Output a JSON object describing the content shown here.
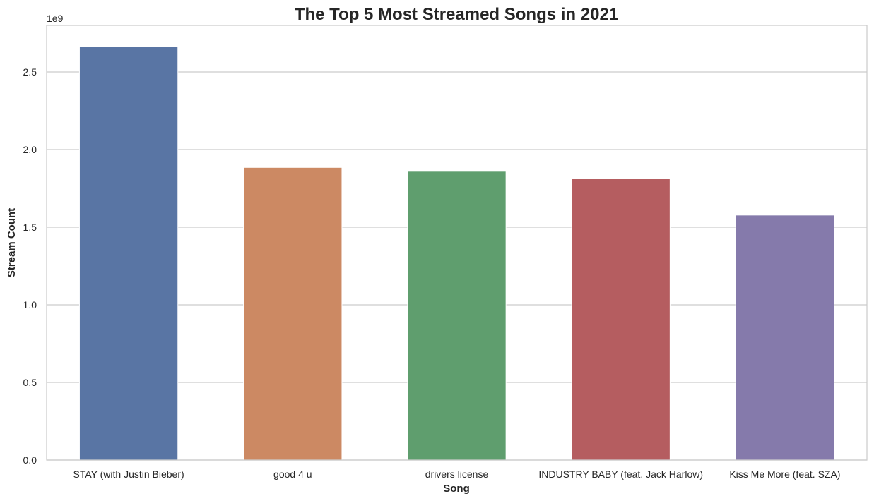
{
  "chart_data": {
    "type": "bar",
    "title": "The Top 5 Most Streamed Songs in 2021",
    "xlabel": "Song",
    "ylabel": "Stream Count",
    "y_offset_label": "1e9",
    "y_scale": 1000000000,
    "ylim": [
      0,
      2.8
    ],
    "yticks": [
      0.0,
      0.5,
      1.0,
      1.5,
      2.0,
      2.5
    ],
    "ytick_labels": [
      "0.0",
      "0.5",
      "1.0",
      "1.5",
      "2.0",
      "2.5"
    ],
    "grid": true,
    "categories": [
      "STAY (with Justin Bieber)",
      "good 4 u",
      "drivers license",
      "INDUSTRY BABY (feat. Jack Harlow)",
      "Kiss Me More (feat. SZA)"
    ],
    "values": [
      2665000000,
      1885000000,
      1860000000,
      1815000000,
      1578000000
    ],
    "colors": [
      "#5975a4",
      "#cc8963",
      "#5f9e6e",
      "#b55d60",
      "#857aab"
    ]
  }
}
